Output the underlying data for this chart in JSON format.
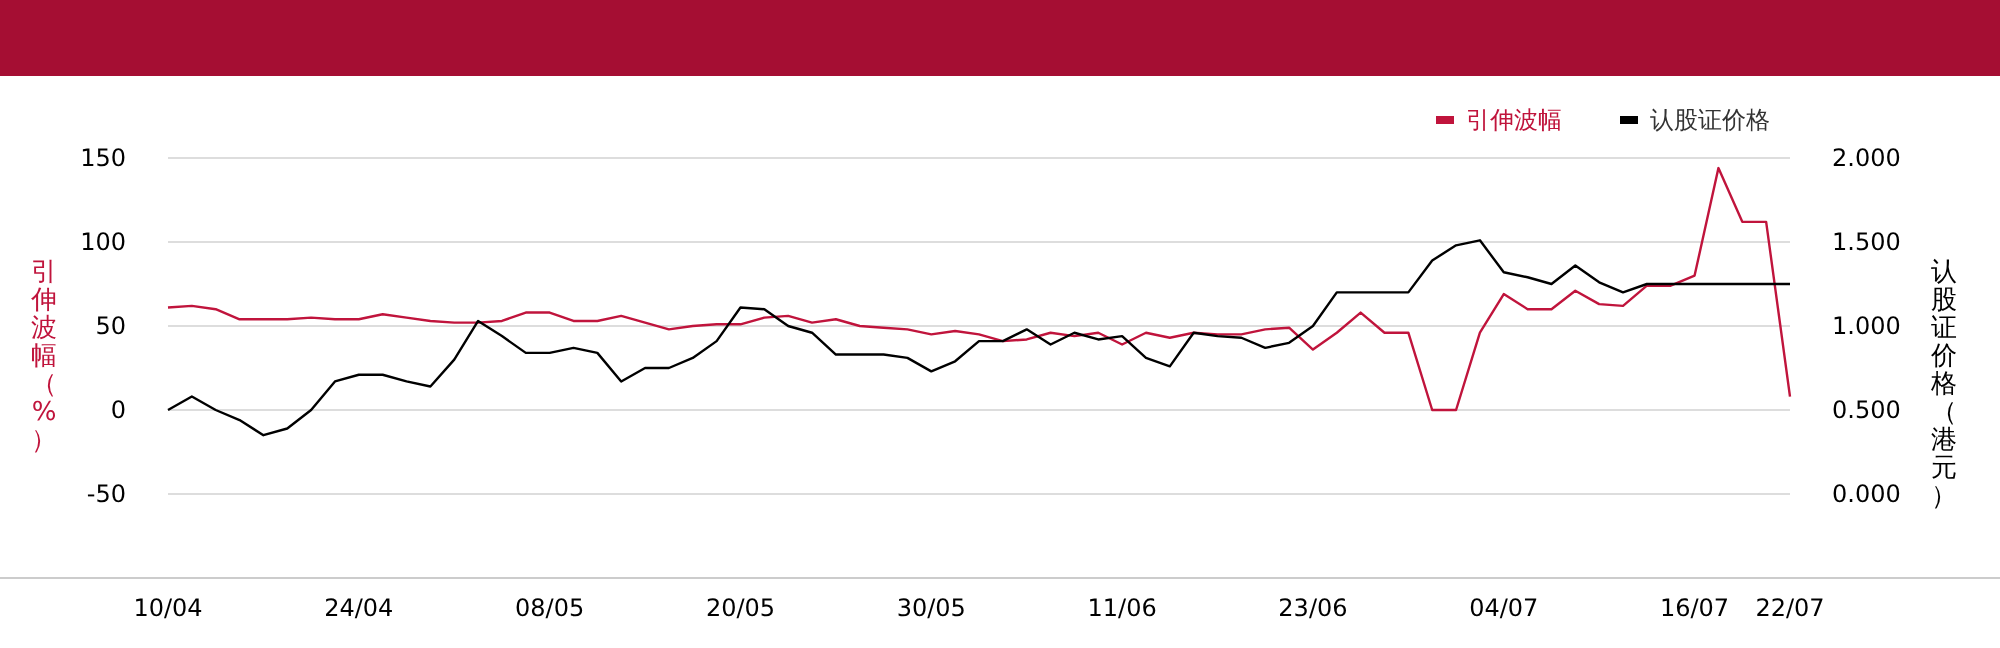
{
  "chart_data": {
    "type": "line",
    "ylabel": "引伸波幅（%）",
    "y2label": "认股证价格（港元）",
    "categories": [
      "10/04",
      null,
      null,
      null,
      null,
      null,
      null,
      null,
      "24/04",
      null,
      null,
      null,
      null,
      null,
      null,
      null,
      "08/05",
      null,
      null,
      null,
      null,
      null,
      null,
      null,
      "20/05",
      null,
      null,
      null,
      null,
      null,
      null,
      null,
      "30/05",
      null,
      null,
      null,
      null,
      null,
      null,
      null,
      "11/06",
      null,
      null,
      null,
      null,
      null,
      null,
      null,
      "23/06",
      null,
      null,
      null,
      null,
      null,
      null,
      null,
      "04/07",
      null,
      null,
      null,
      null,
      null,
      null,
      null,
      "16/07",
      null,
      null,
      null,
      "22/07"
    ],
    "series": [
      {
        "name": "引伸波幅",
        "color": "#c0143c",
        "values": [
          61,
          62,
          60,
          54,
          54,
          54,
          55,
          54,
          54,
          57,
          55,
          53,
          52,
          52,
          53,
          58,
          58,
          53,
          53,
          56,
          52,
          48,
          50,
          51,
          51,
          55,
          56,
          52,
          54,
          50,
          49,
          48,
          45,
          47,
          45,
          41,
          42,
          46,
          44,
          46,
          39,
          46,
          43,
          46,
          45,
          45,
          48,
          49,
          36,
          46,
          58,
          46,
          46,
          0,
          0,
          46,
          69,
          60,
          60,
          71,
          63,
          62,
          74,
          74,
          80,
          144,
          112,
          112,
          8
        ]
      },
      {
        "name": "认股证价格",
        "color": "#000000",
        "axis": "y2",
        "values": [
          0.5,
          0.58,
          0.5,
          0.44,
          0.35,
          0.39,
          0.5,
          0.67,
          0.71,
          0.71,
          0.67,
          0.64,
          0.8,
          1.03,
          0.94,
          0.84,
          0.84,
          0.87,
          0.84,
          0.67,
          0.75,
          0.75,
          0.81,
          0.91,
          1.11,
          1.1,
          1.0,
          0.96,
          0.83,
          0.83,
          0.83,
          0.81,
          0.73,
          0.79,
          0.91,
          0.91,
          0.98,
          0.89,
          0.96,
          0.92,
          0.94,
          0.81,
          0.76,
          0.96,
          0.94,
          0.93,
          0.87,
          0.9,
          1.0,
          1.2,
          1.2,
          1.2,
          1.2,
          1.39,
          1.48,
          1.51,
          1.32,
          1.29,
          1.25,
          1.36,
          1.26,
          1.2,
          1.25,
          1.25,
          1.25,
          1.25,
          1.25,
          1.25,
          1.25
        ]
      }
    ],
    "ylim": [
      -100,
      150
    ],
    "yticks": [
      -50,
      0,
      50,
      100,
      150
    ],
    "y2lim": [
      -0.5,
      2.0
    ],
    "y2ticks": [
      {
        "value": 0,
        "label": "0.000"
      },
      {
        "value": 0.5,
        "label": "0.500"
      },
      {
        "value": 1,
        "label": "1.000"
      },
      {
        "value": 1.5,
        "label": "1.500"
      },
      {
        "value": 2,
        "label": "2.000"
      }
    ],
    "grid": "y",
    "legend": "top right",
    "marker": "none",
    "line_style": "solid"
  }
}
